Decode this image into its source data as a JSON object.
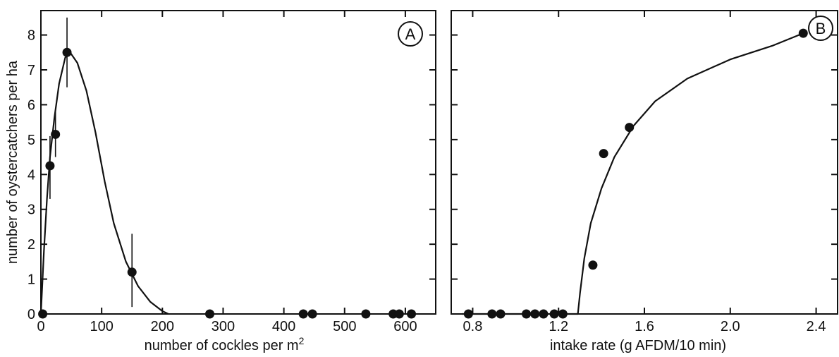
{
  "shared_ylabel": "number of oystercatchers per ha",
  "chart_data": [
    {
      "panel_label": "A",
      "type": "scatter",
      "xlabel": "number of cockles per m",
      "xlabel_superscript": "2",
      "ylabel": "number of oystercatchers per ha",
      "xlim": [
        0,
        650
      ],
      "ylim": [
        0,
        8.7
      ],
      "xticks": [
        0,
        100,
        200,
        300,
        400,
        500,
        600
      ],
      "yticks": [
        0,
        1,
        2,
        3,
        4,
        5,
        6,
        7,
        8
      ],
      "points": [
        {
          "x": 3,
          "y": 0.0
        },
        {
          "x": 15,
          "y": 4.25,
          "err": [
            3.3,
            5.1
          ]
        },
        {
          "x": 24,
          "y": 5.15,
          "err": [
            4.5,
            5.8
          ]
        },
        {
          "x": 43,
          "y": 7.5,
          "err": [
            6.5,
            8.5
          ]
        },
        {
          "x": 150,
          "y": 1.2,
          "err": [
            0.2,
            2.3
          ]
        },
        {
          "x": 278,
          "y": 0.0
        },
        {
          "x": 432,
          "y": 0.0
        },
        {
          "x": 447,
          "y": 0.0
        },
        {
          "x": 535,
          "y": 0.0
        },
        {
          "x": 580,
          "y": 0.0
        },
        {
          "x": 590,
          "y": 0.0
        },
        {
          "x": 610,
          "y": 0.0
        }
      ],
      "curve": [
        {
          "x": 0,
          "y": 0.0
        },
        {
          "x": 5,
          "y": 1.8
        },
        {
          "x": 10,
          "y": 3.3
        },
        {
          "x": 15,
          "y": 4.5
        },
        {
          "x": 22,
          "y": 5.6
        },
        {
          "x": 30,
          "y": 6.6
        },
        {
          "x": 40,
          "y": 7.35
        },
        {
          "x": 48,
          "y": 7.5
        },
        {
          "x": 60,
          "y": 7.2
        },
        {
          "x": 75,
          "y": 6.4
        },
        {
          "x": 90,
          "y": 5.2
        },
        {
          "x": 105,
          "y": 3.8
        },
        {
          "x": 120,
          "y": 2.6
        },
        {
          "x": 140,
          "y": 1.5
        },
        {
          "x": 160,
          "y": 0.8
        },
        {
          "x": 180,
          "y": 0.35
        },
        {
          "x": 200,
          "y": 0.08
        },
        {
          "x": 210,
          "y": 0.0
        }
      ]
    },
    {
      "panel_label": "B",
      "type": "scatter",
      "xlabel": "intake rate (g AFDM/10 min)",
      "ylabel": "",
      "xlim": [
        0.7,
        2.5
      ],
      "ylim": [
        0,
        8.7
      ],
      "xticks": [
        0.8,
        1.2,
        1.6,
        2.0,
        2.4
      ],
      "yticks": [
        0,
        1,
        2,
        3,
        4,
        5,
        6,
        7,
        8
      ],
      "points": [
        {
          "x": 0.78,
          "y": 0.0
        },
        {
          "x": 0.89,
          "y": 0.0
        },
        {
          "x": 0.93,
          "y": 0.0
        },
        {
          "x": 1.05,
          "y": 0.0
        },
        {
          "x": 1.09,
          "y": 0.0
        },
        {
          "x": 1.13,
          "y": 0.0
        },
        {
          "x": 1.18,
          "y": 0.0
        },
        {
          "x": 1.22,
          "y": 0.0
        },
        {
          "x": 1.36,
          "y": 1.4
        },
        {
          "x": 1.41,
          "y": 4.6
        },
        {
          "x": 1.53,
          "y": 5.35
        },
        {
          "x": 2.34,
          "y": 8.05
        }
      ],
      "curve": [
        {
          "x": 0.75,
          "y": 0.0
        },
        {
          "x": 1.29,
          "y": 0.0
        },
        {
          "x": 1.3,
          "y": 0.6
        },
        {
          "x": 1.32,
          "y": 1.6
        },
        {
          "x": 1.35,
          "y": 2.6
        },
        {
          "x": 1.4,
          "y": 3.6
        },
        {
          "x": 1.46,
          "y": 4.5
        },
        {
          "x": 1.55,
          "y": 5.4
        },
        {
          "x": 1.65,
          "y": 6.1
        },
        {
          "x": 1.8,
          "y": 6.75
        },
        {
          "x": 2.0,
          "y": 7.3
        },
        {
          "x": 2.2,
          "y": 7.7
        },
        {
          "x": 2.34,
          "y": 8.05
        }
      ]
    }
  ]
}
